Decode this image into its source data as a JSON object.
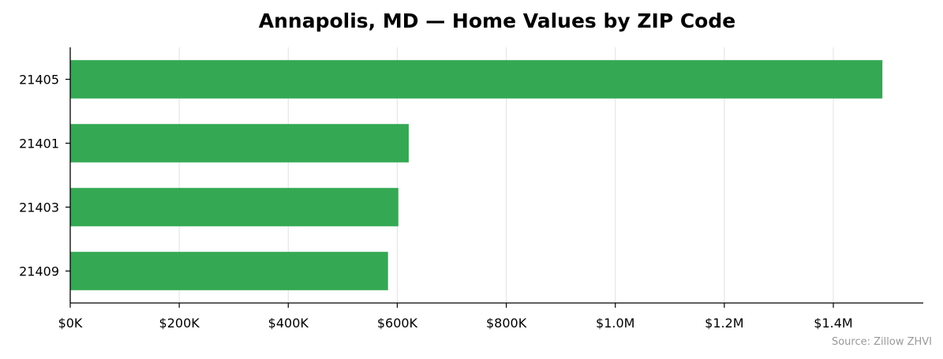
{
  "chart_data": {
    "type": "bar",
    "orientation": "horizontal",
    "title": "Annapolis, MD — Home Values by ZIP Code",
    "categories": [
      "21405",
      "21401",
      "21403",
      "21409"
    ],
    "values": [
      1490000,
      621000,
      602000,
      583000
    ],
    "xlim": [
      0,
      1565000
    ],
    "x_ticks": [
      0,
      200000,
      400000,
      600000,
      800000,
      1000000,
      1200000,
      1400000
    ],
    "x_tick_labels": [
      "$0K",
      "$200K",
      "$400K",
      "$600K",
      "$800K",
      "$1.0M",
      "$1.2M",
      "$1.4M"
    ],
    "xlabel": "",
    "ylabel": "",
    "grid": "vertical",
    "bar_color": "#34a853",
    "source": "Source: Zillow ZHVI"
  }
}
